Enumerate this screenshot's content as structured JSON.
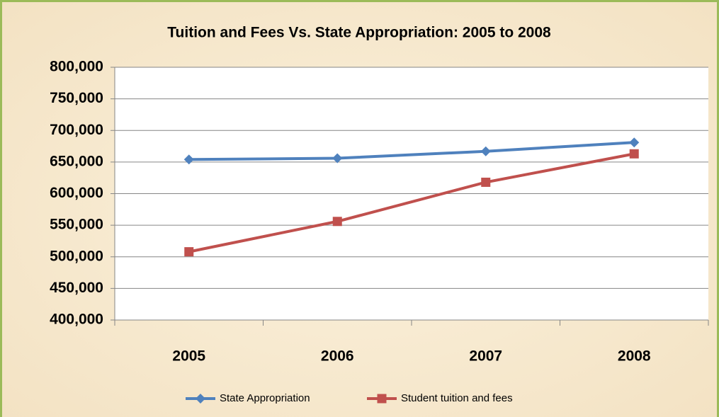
{
  "chart_data": {
    "type": "line",
    "title": "Tuition and Fees Vs. State Appropriation: 2005 to 2008",
    "categories": [
      "2005",
      "2006",
      "2007",
      "2008"
    ],
    "series": [
      {
        "name": "State Appropriation",
        "color": "#4f81bd",
        "marker": "diamond",
        "values": [
          654000,
          656000,
          667000,
          681000
        ]
      },
      {
        "name": "Student tuition and fees",
        "color": "#c0504d",
        "marker": "square",
        "values": [
          508000,
          556000,
          618000,
          663000
        ]
      }
    ],
    "ylim": [
      400000,
      800000
    ],
    "yticks": [
      {
        "value": 400000,
        "label": "400,000"
      },
      {
        "value": 450000,
        "label": "450,000"
      },
      {
        "value": 500000,
        "label": "500,000"
      },
      {
        "value": 550000,
        "label": "550,000"
      },
      {
        "value": 600000,
        "label": "600,000"
      },
      {
        "value": 650000,
        "label": "650,000"
      },
      {
        "value": 700000,
        "label": "700,000"
      },
      {
        "value": 750000,
        "label": "750,000"
      },
      {
        "value": 800000,
        "label": "800,000"
      }
    ],
    "grid": true,
    "legend": "bottom"
  }
}
